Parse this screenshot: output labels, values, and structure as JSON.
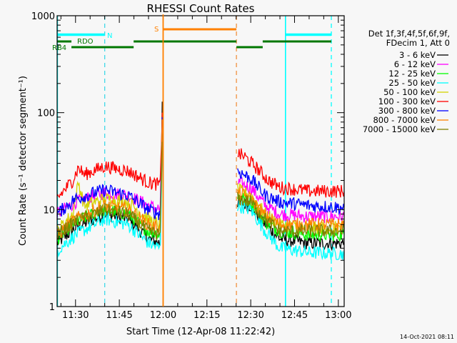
{
  "chart_data": {
    "type": "line",
    "title": "RHESSI Count Rates",
    "xlabel": "Start Time (12-Apr-08 11:22:42)",
    "ylabel": "Count Rate (s⁻¹ detector segment⁻¹)",
    "x_unit": "minutes after 11:00 on 12-Apr-08",
    "xlim": [
      23.7,
      122.0
    ],
    "ylim": [
      1,
      1000
    ],
    "yscale": "log",
    "x_ticks": [
      {
        "value": 30,
        "label": "11:30"
      },
      {
        "value": 45,
        "label": "11:45"
      },
      {
        "value": 60,
        "label": "12:00"
      },
      {
        "value": 75,
        "label": "12:15"
      },
      {
        "value": 90,
        "label": "12:30"
      },
      {
        "value": 105,
        "label": "12:45"
      },
      {
        "value": 120,
        "label": "13:00"
      }
    ],
    "y_ticks": [
      {
        "value": 1,
        "label": "1"
      },
      {
        "value": 10,
        "label": "10"
      },
      {
        "value": 100,
        "label": "100"
      },
      {
        "value": 1000,
        "label": "1000"
      }
    ],
    "legend_header": [
      "Det 1f,3f,4f,5f,6f,9f,",
      "FDecim 1, Att 0"
    ],
    "legend_position": "right",
    "series": [
      {
        "name": "3 - 6 keV",
        "color": "#000000",
        "segments": [
          [
            [
              23.7,
              4.5
            ],
            [
              30,
              6.5
            ],
            [
              40,
              9
            ],
            [
              48,
              8
            ],
            [
              55,
              5
            ],
            [
              59,
              4.5
            ],
            [
              59.7,
              130
            ]
          ],
          [
            [
              85.5,
              12
            ],
            [
              90,
              11
            ],
            [
              95,
              7
            ],
            [
              100,
              5
            ],
            [
              110,
              4.5
            ],
            [
              122,
              4.5
            ]
          ]
        ]
      },
      {
        "name": "6 - 12 keV",
        "color": "#ff00ff",
        "segments": [
          [
            [
              23.7,
              9
            ],
            [
              30,
              12
            ],
            [
              40,
              15
            ],
            [
              48,
              14
            ],
            [
              55,
              11
            ],
            [
              59,
              10
            ],
            [
              59.7,
              80
            ]
          ],
          [
            [
              85.5,
              19
            ],
            [
              90,
              17
            ],
            [
              95,
              11
            ],
            [
              100,
              9
            ],
            [
              110,
              8.5
            ],
            [
              122,
              8.5
            ]
          ]
        ]
      },
      {
        "name": "12 - 25 keV",
        "color": "#00ff00",
        "segments": [
          [
            [
              23.7,
              5
            ],
            [
              30,
              7.5
            ],
            [
              40,
              10
            ],
            [
              48,
              9
            ],
            [
              55,
              6
            ],
            [
              59,
              5.5
            ],
            [
              59.7,
              60
            ]
          ],
          [
            [
              85.5,
              14
            ],
            [
              90,
              12
            ],
            [
              95,
              7.5
            ],
            [
              100,
              6
            ],
            [
              110,
              5.5
            ],
            [
              122,
              5.5
            ]
          ]
        ]
      },
      {
        "name": "25 - 50 keV",
        "color": "#00ffff",
        "segments": [
          [
            [
              23.7,
              3.8
            ],
            [
              30,
              5.5
            ],
            [
              40,
              8
            ],
            [
              48,
              7
            ],
            [
              55,
              4.5
            ],
            [
              59,
              4
            ],
            [
              59.7,
              40
            ]
          ],
          [
            [
              85.5,
              11
            ],
            [
              90,
              10
            ],
            [
              95,
              6
            ],
            [
              100,
              4
            ],
            [
              110,
              3.6
            ],
            [
              122,
              3.5
            ]
          ]
        ]
      },
      {
        "name": "50 - 100 keV",
        "color": "#d4d400",
        "segments": [
          [
            [
              23.7,
              6
            ],
            [
              29,
              9
            ],
            [
              31,
              19
            ],
            [
              33,
              11
            ],
            [
              40,
              13
            ],
            [
              48,
              12
            ],
            [
              55,
              8
            ],
            [
              59,
              7
            ],
            [
              59.7,
              70
            ]
          ],
          [
            [
              85.5,
              16
            ],
            [
              90,
              14
            ],
            [
              95,
              9
            ],
            [
              100,
              7
            ],
            [
              110,
              6.5
            ],
            [
              122,
              6.5
            ]
          ]
        ]
      },
      {
        "name": "100 - 300 keV",
        "color": "#ff0000",
        "segments": [
          [
            [
              23.7,
              13
            ],
            [
              29,
              20
            ],
            [
              31,
              27
            ],
            [
              33,
              23
            ],
            [
              40,
              28
            ],
            [
              48,
              25
            ],
            [
              55,
              19
            ],
            [
              59,
              18
            ],
            [
              59.7,
              100
            ]
          ],
          [
            [
              85.5,
              38
            ],
            [
              88,
              35
            ],
            [
              92,
              27
            ],
            [
              96,
              20
            ],
            [
              100,
              17
            ],
            [
              110,
              15.5
            ],
            [
              122,
              15.5
            ]
          ]
        ]
      },
      {
        "name": "300 - 800 keV",
        "color": "#0000ff",
        "segments": [
          [
            [
              23.7,
              9
            ],
            [
              30,
              13
            ],
            [
              40,
              16
            ],
            [
              48,
              14
            ],
            [
              55,
              10
            ],
            [
              59,
              9
            ],
            [
              59.7,
              90
            ]
          ],
          [
            [
              85.5,
              25
            ],
            [
              90,
              21
            ],
            [
              95,
              14
            ],
            [
              100,
              12
            ],
            [
              110,
              11
            ],
            [
              122,
              10.5
            ]
          ]
        ]
      },
      {
        "name": "800 - 7000 keV",
        "color": "#ff8000",
        "segments": [
          [
            [
              23.7,
              5.5
            ],
            [
              30,
              8
            ],
            [
              40,
              11
            ],
            [
              48,
              10
            ],
            [
              55,
              7
            ],
            [
              59,
              6.5
            ],
            [
              59.7,
              85
            ]
          ],
          [
            [
              85.5,
              15
            ],
            [
              90,
              13
            ],
            [
              95,
              8.5
            ],
            [
              100,
              7
            ],
            [
              110,
              7
            ],
            [
              122,
              7
            ]
          ]
        ]
      },
      {
        "name": "7000 - 15000 keV",
        "color": "#808000",
        "segments": [
          [
            [
              23.7,
              5.5
            ],
            [
              30,
              7.5
            ],
            [
              40,
              10
            ],
            [
              48,
              9
            ],
            [
              55,
              6
            ],
            [
              59,
              5.5
            ],
            [
              59.7,
              50
            ]
          ],
          [
            [
              85.5,
              13
            ],
            [
              90,
              12
            ],
            [
              95,
              8
            ],
            [
              100,
              6
            ],
            [
              110,
              6
            ],
            [
              122,
              6
            ]
          ]
        ]
      }
    ],
    "vertical_markers": [
      {
        "time": 23.8,
        "color": "#00ffff",
        "style": "solid"
      },
      {
        "time": 40.0,
        "color": "#40d8e8",
        "style": "dashed"
      },
      {
        "time": 60.0,
        "color": "#ff8000",
        "style": "solid"
      },
      {
        "time": 85.1,
        "color": "#f09040",
        "style": "dashed"
      },
      {
        "time": 101.9,
        "color": "#00ffff",
        "style": "solid"
      },
      {
        "time": 117.6,
        "color": "#00ffff",
        "style": "dashed"
      }
    ],
    "state_bars": [
      {
        "label": "N",
        "color": "#00ffff",
        "level": "night",
        "intervals": [
          [
            23.7,
            40.0
          ],
          [
            101.9,
            117.6
          ]
        ]
      },
      {
        "label": "S",
        "color": "#ff8000",
        "level": "saa",
        "intervals": [
          [
            60.0,
            85.1
          ]
        ]
      },
      {
        "label": "RDO",
        "color": "#007700",
        "level": "rdo",
        "intervals": [
          [
            23.7,
            28.6
          ],
          [
            49.9,
            85.1
          ],
          [
            94.1,
            117.6
          ]
        ]
      },
      {
        "label": "RB4",
        "color": "#007700",
        "level": "rb4",
        "intervals": [
          [
            28.6,
            49.9
          ],
          [
            85.1,
            94.1
          ]
        ]
      }
    ]
  },
  "footer": {
    "timestamp": "14-Oct-2021 08:11"
  }
}
